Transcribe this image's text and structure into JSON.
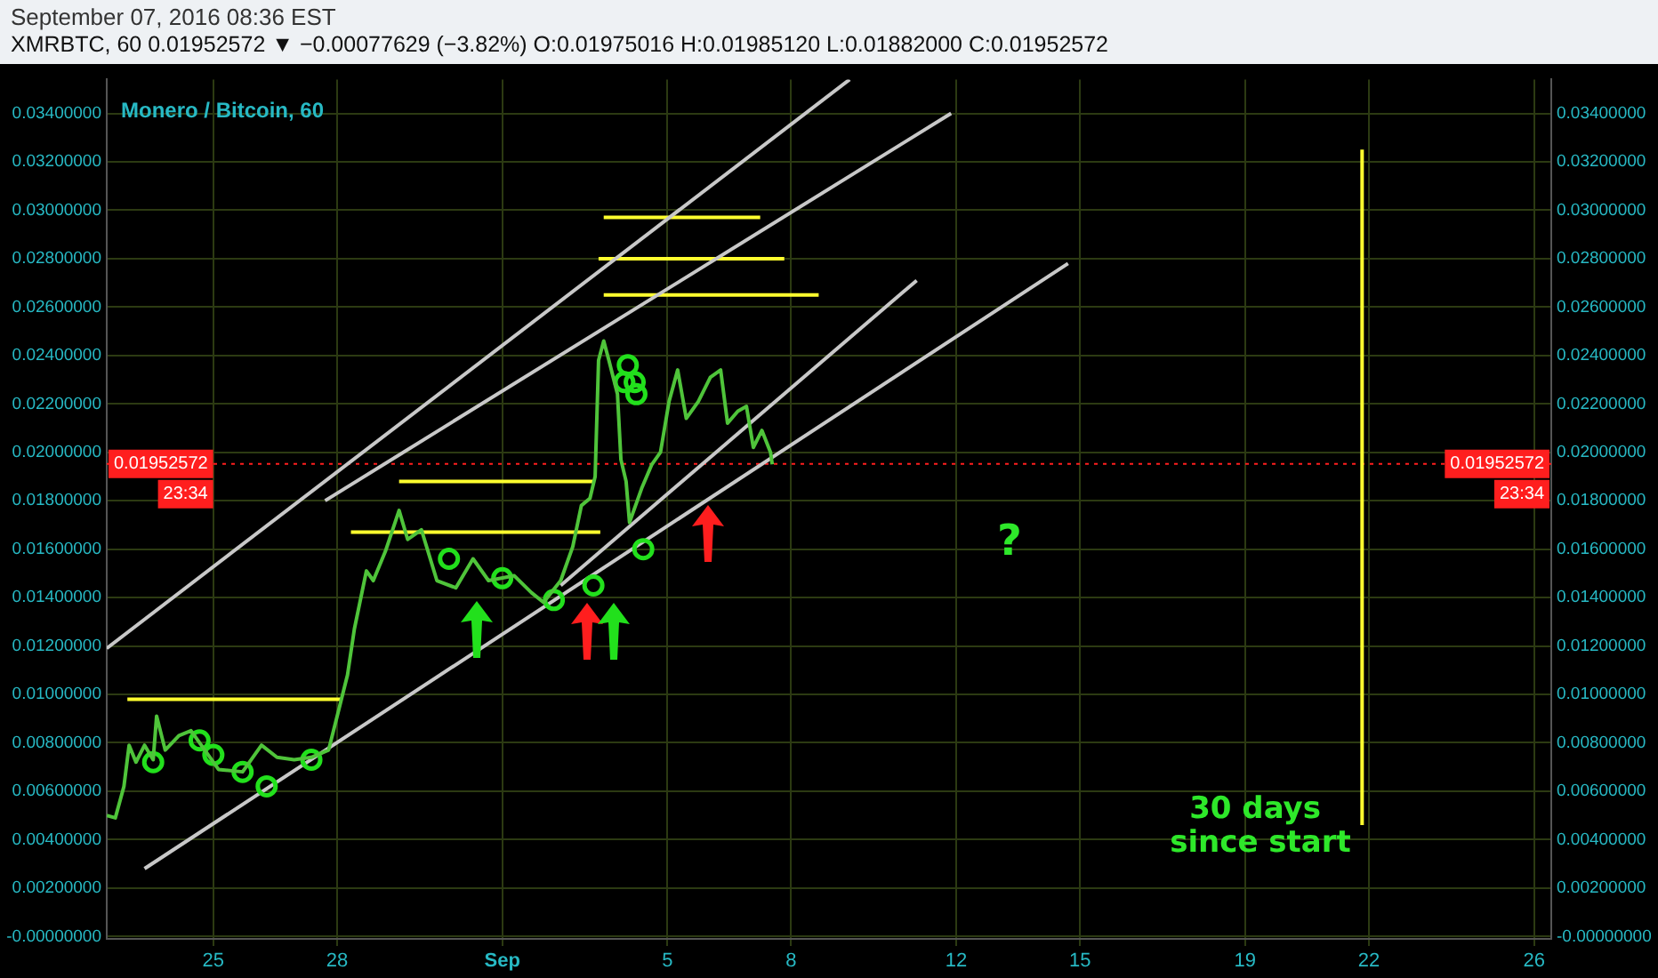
{
  "chart_data": {
    "type": "line",
    "title": "Monero / Bitcoin, 60",
    "subtitle": "XMRBTC, 60 0.01952572 ▼ −0.00077629 (−3.82%) O:0.01975016 H:0.01985120 L:0.01882000 C:0.01952572",
    "annotations": [
      "September 07, 2016 08:36 EST",
      "23:34",
      "?",
      "30 days\n since start"
    ],
    "series": [
      {
        "color": "#4fc43a",
        "x": [
          "2016-08-22T10:00",
          "2016-08-22T15:00",
          "2016-08-22T20:00",
          "2016-08-22T23:00",
          "2016-08-23T03:00",
          "2016-08-23T08:00",
          "2016-08-23T13:00",
          "2016-08-23T15:00",
          "2016-08-23T20:00",
          "2016-08-24T04:00",
          "2016-08-24T11:00",
          "2016-08-24T19:00",
          "2016-08-25T03:00",
          "2016-08-25T17:00",
          "2016-08-26T04:00",
          "2016-08-26T13:00",
          "2016-08-26T23:00",
          "2016-08-27T09:00",
          "2016-08-27T19:00",
          "2016-08-28T00:00",
          "2016-08-28T06:00",
          "2016-08-28T10:00",
          "2016-08-28T17:00",
          "2016-08-28T21:00",
          "2016-08-29T04:00",
          "2016-08-29T12:00",
          "2016-08-29T17:00",
          "2016-08-30T01:00",
          "2016-08-30T10:00",
          "2016-08-30T21:00",
          "2016-08-31T07:00",
          "2016-08-31T16:00",
          "2016-09-01T07:00",
          "2016-09-01T17:00",
          "2016-09-02T00:00",
          "2016-09-02T10:00",
          "2016-09-02T17:00",
          "2016-09-02T22:00",
          "2016-09-03T03:00",
          "2016-09-03T06:00",
          "2016-09-03T08:00",
          "2016-09-03T11:00",
          "2016-09-03T14:00",
          "2016-09-03T19:00",
          "2016-09-03T21:00",
          "2016-09-04T00:00",
          "2016-09-04T02:00",
          "2016-09-04T09:00",
          "2016-09-04T15:00",
          "2016-09-04T20:00",
          "2016-09-05T01:00",
          "2016-09-05T06:00",
          "2016-09-05T11:00",
          "2016-09-05T18:00",
          "2016-09-06T01:00",
          "2016-09-06T07:00",
          "2016-09-06T11:00",
          "2016-09-06T17:00",
          "2016-09-06T22:00",
          "2016-09-07T02:00",
          "2016-09-07T07:00",
          "2016-09-07T12:00",
          "2016-09-07T13:00"
        ],
        "values": [
          0.005,
          0.0049,
          0.0062,
          0.0079,
          0.0072,
          0.0079,
          0.0073,
          0.0091,
          0.0077,
          0.0083,
          0.0085,
          0.0077,
          0.0069,
          0.0068,
          0.0079,
          0.0074,
          0.0073,
          0.0074,
          0.0077,
          0.0091,
          0.0108,
          0.0127,
          0.0151,
          0.0147,
          0.0159,
          0.0176,
          0.0164,
          0.0168,
          0.0147,
          0.0144,
          0.0156,
          0.0147,
          0.0149,
          0.0142,
          0.0138,
          0.0147,
          0.0161,
          0.0178,
          0.0181,
          0.019,
          0.0238,
          0.0246,
          0.0238,
          0.0224,
          0.0197,
          0.0188,
          0.0171,
          0.0185,
          0.0195,
          0.02,
          0.0221,
          0.0234,
          0.0214,
          0.0221,
          0.0231,
          0.0234,
          0.0212,
          0.0217,
          0.0219,
          0.0202,
          0.0209,
          0.02,
          0.0195
        ]
      },
      {
        "type": "scatter",
        "marker": "circle",
        "color": "#22e01c",
        "x": [
          "2016-08-23T13:00",
          "2016-08-24T16:00",
          "2016-08-25T00:00",
          "2016-08-25T17:00",
          "2016-08-26T07:00",
          "2016-08-27T09:00",
          "2016-08-30T17:00",
          "2016-09-01T00:00",
          "2016-09-02T06:00",
          "2016-09-03T05:00",
          "2016-09-04T10:00",
          "2016-09-04T01:00",
          "2016-09-03T23:00",
          "2016-09-04T05:00",
          "2016-09-04T06:00"
        ],
        "values": [
          0.0072,
          0.0081,
          0.0075,
          0.0068,
          0.0062,
          0.0073,
          0.0156,
          0.0148,
          0.0139,
          0.0145,
          0.016,
          0.0236,
          0.0229,
          0.0229,
          0.0224
        ]
      },
      {
        "color": "#c8c8c8",
        "x": [
          "2016-08-22T10:00",
          "2016-09-09T10:00"
        ],
        "values": [
          0.0119,
          0.0354
        ]
      },
      {
        "color": "#c8c8c8",
        "x": [
          "2016-08-27T17:00",
          "2016-09-11T21:00"
        ],
        "values": [
          0.018,
          0.034
        ]
      },
      {
        "color": "#c8c8c8",
        "x": [
          "2016-09-02T10:00",
          "2016-09-11T01:00"
        ],
        "values": [
          0.0145,
          0.0271
        ]
      },
      {
        "color": "#c8c8c8",
        "x": [
          "2016-08-23T08:00",
          "2016-09-14T17:00"
        ],
        "values": [
          0.0028,
          0.0278
        ]
      },
      {
        "color": "#ffff2e",
        "x": [
          "2016-08-22T22:00",
          "2016-08-28T03:00"
        ],
        "values": [
          0.0098,
          0.0098
        ]
      },
      {
        "color": "#ffff2e",
        "x": [
          "2016-08-28T08:00",
          "2016-09-03T09:00"
        ],
        "values": [
          0.0167,
          0.0167
        ]
      },
      {
        "color": "#ffff2e",
        "x": [
          "2016-08-29T12:00",
          "2016-09-03T05:00"
        ],
        "values": [
          0.0188,
          0.0188
        ]
      },
      {
        "color": "#ffff2e",
        "x": [
          "2016-09-03T11:00",
          "2016-09-07T06:00"
        ],
        "values": [
          0.0297,
          0.0297
        ]
      },
      {
        "color": "#ffff2e",
        "x": [
          "2016-09-03T08:00",
          "2016-09-07T20:00"
        ],
        "values": [
          0.028,
          0.028
        ]
      },
      {
        "color": "#ffff2e",
        "x": [
          "2016-09-03T11:00",
          "2016-09-08T16:00"
        ],
        "values": [
          0.0265,
          0.0265
        ]
      },
      {
        "color": "#ffff2e",
        "x": [
          "2016-09-21T20:00",
          "2016-09-21T20:00"
        ],
        "values": [
          0.0046,
          0.0325
        ]
      }
    ],
    "xlim": [
      "2016-08-22T10:00",
      "2016-09-26T10:00"
    ],
    "xticks": [
      {
        "value": "2016-08-25",
        "label": "25"
      },
      {
        "value": "2016-08-28",
        "label": "28"
      },
      {
        "value": "2016-09-01",
        "label": "Sep"
      },
      {
        "value": "2016-09-05",
        "label": "5"
      },
      {
        "value": "2016-09-08",
        "label": "8"
      },
      {
        "value": "2016-09-12",
        "label": "12"
      },
      {
        "value": "2016-09-15",
        "label": "15"
      },
      {
        "value": "2016-09-19",
        "label": "19"
      },
      {
        "value": "2016-09-22",
        "label": "22"
      },
      {
        "value": "2016-09-26",
        "label": "26"
      }
    ],
    "ylim": [
      -0.0001,
      0.0354
    ],
    "yticks": [
      {
        "value": 0,
        "label": "-0.00000000"
      },
      {
        "value": 0.002,
        "label": "0.00200000"
      },
      {
        "value": 0.004,
        "label": "0.00400000"
      },
      {
        "value": 0.006,
        "label": "0.00600000"
      },
      {
        "value": 0.008,
        "label": "0.00800000"
      },
      {
        "value": 0.01,
        "label": "0.01000000"
      },
      {
        "value": 0.012,
        "label": "0.01200000"
      },
      {
        "value": 0.014,
        "label": "0.01400000"
      },
      {
        "value": 0.016,
        "label": "0.01600000"
      },
      {
        "value": 0.018,
        "label": "0.01800000"
      },
      {
        "value": 0.02,
        "label": "0.02000000"
      },
      {
        "value": 0.022,
        "label": "0.02200000"
      },
      {
        "value": 0.024,
        "label": "0.02400000"
      },
      {
        "value": 0.026,
        "label": "0.02600000"
      },
      {
        "value": 0.028,
        "label": "0.02800000"
      },
      {
        "value": 0.03,
        "label": "0.03000000"
      },
      {
        "value": 0.032,
        "label": "0.03200000"
      },
      {
        "value": 0.034,
        "label": "0.03400000"
      }
    ],
    "y2lim": [
      -0.0001,
      0.0354
    ],
    "y2ticks": [
      {
        "value": 0,
        "label": "-0.00000000"
      },
      {
        "value": 0.002,
        "label": "0.00200000"
      },
      {
        "value": 0.004,
        "label": "0.00400000"
      },
      {
        "value": 0.006,
        "label": "0.00600000"
      },
      {
        "value": 0.008,
        "label": "0.00800000"
      },
      {
        "value": 0.01,
        "label": "0.01000000"
      },
      {
        "value": 0.012,
        "label": "0.01200000"
      },
      {
        "value": 0.014,
        "label": "0.01400000"
      },
      {
        "value": 0.016,
        "label": "0.01600000"
      },
      {
        "value": 0.018,
        "label": "0.01800000"
      },
      {
        "value": 0.02,
        "label": "0.02000000"
      },
      {
        "value": 0.022,
        "label": "0.02200000"
      },
      {
        "value": 0.024,
        "label": "0.02400000"
      },
      {
        "value": 0.026,
        "label": "0.02600000"
      },
      {
        "value": 0.028,
        "label": "0.02800000"
      },
      {
        "value": 0.03,
        "label": "0.03000000"
      },
      {
        "value": 0.032,
        "label": "0.03200000"
      },
      {
        "value": 0.034,
        "label": "0.03400000"
      }
    ],
    "ref_lines": [
      {
        "axis": "y",
        "value": 0.01952572,
        "label": "0.01952572",
        "color": "#ff1e1e",
        "line_style": "dotted"
      }
    ],
    "grid": true,
    "legend": false,
    "marker": "none"
  }
}
